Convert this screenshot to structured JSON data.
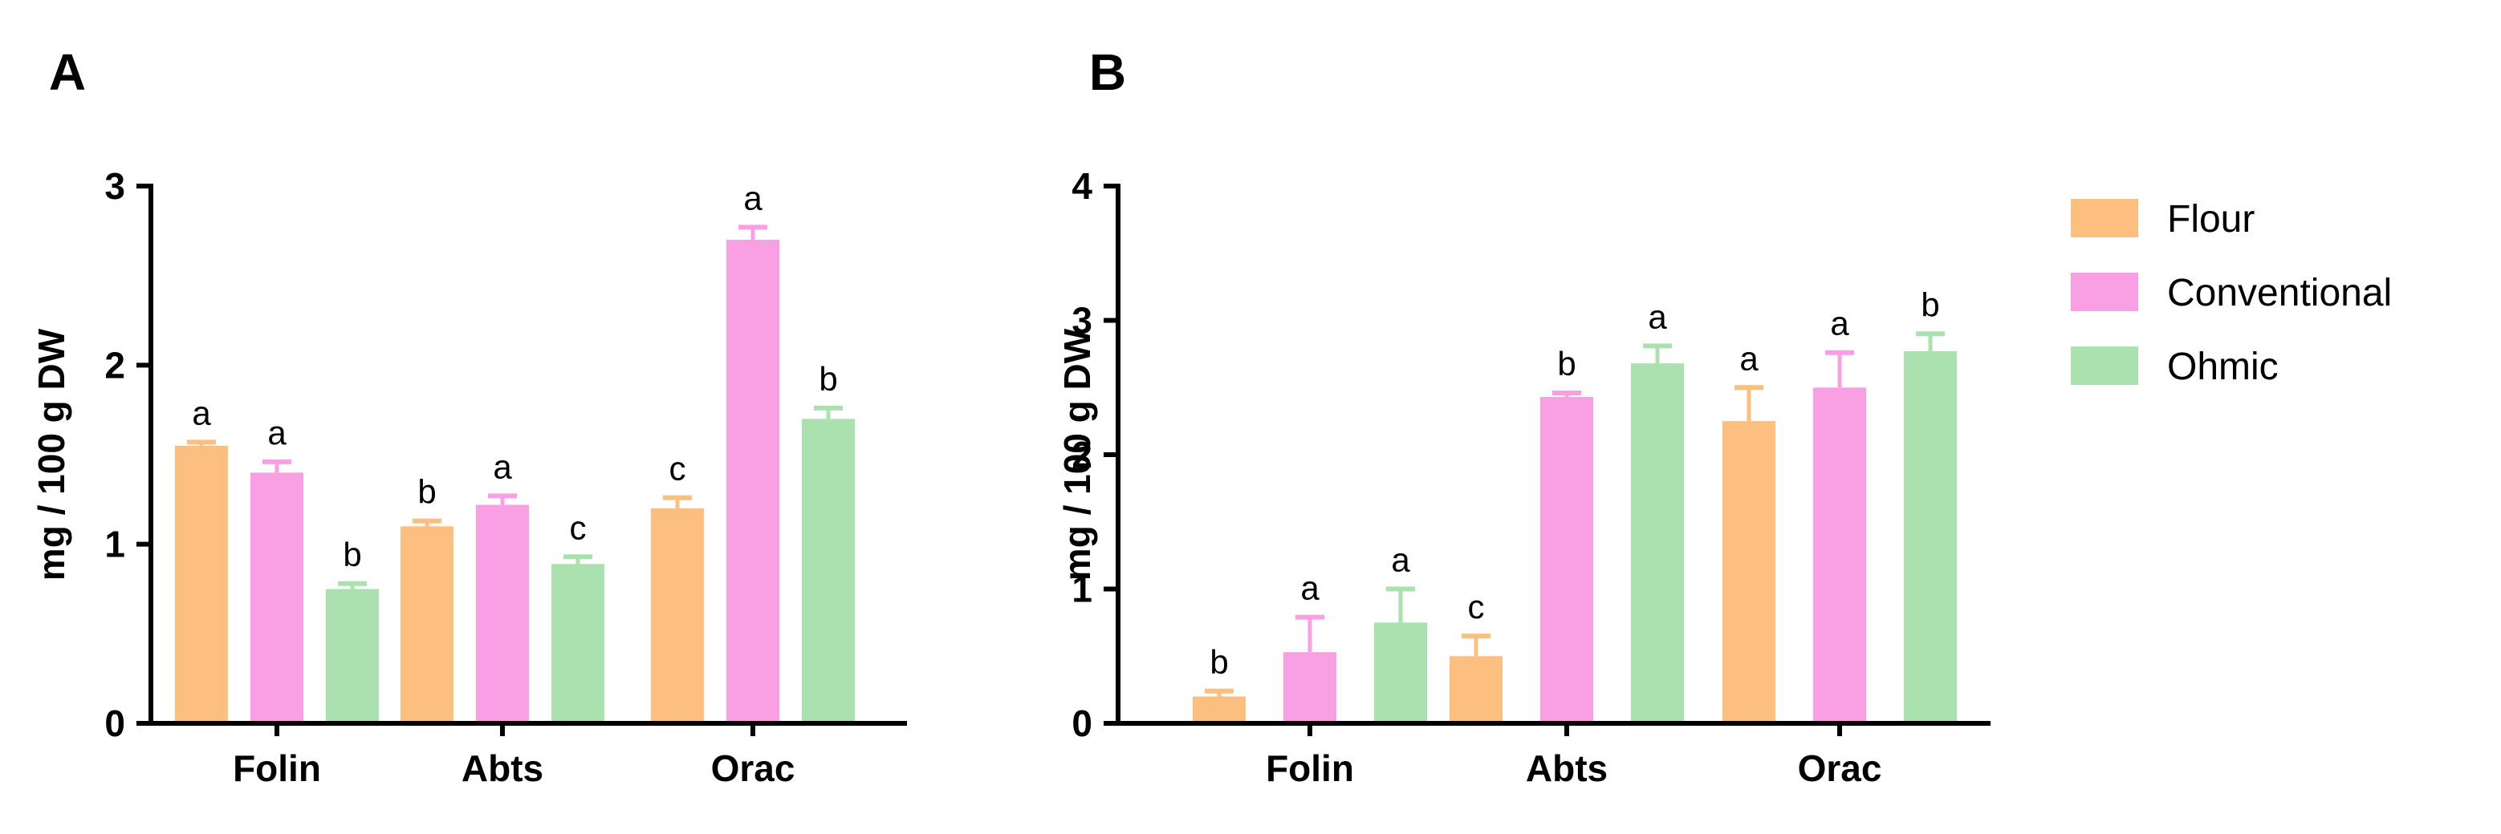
{
  "chart_data": [
    {
      "type": "bar",
      "panel": "A",
      "ylabel": "mg / 100 g DW",
      "xlabel": "",
      "ylim": [
        0,
        3
      ],
      "yticks": [
        "0",
        "1",
        "2",
        "3"
      ],
      "categories": [
        "Folin",
        "Abts",
        "Orac"
      ],
      "series": [
        {
          "name": "Flour",
          "values": [
            1.55,
            1.1,
            1.2
          ],
          "errors": [
            0.02,
            0.03,
            0.06
          ],
          "letters": [
            "a",
            "b",
            "c"
          ]
        },
        {
          "name": "Conventional",
          "values": [
            1.4,
            1.22,
            2.7
          ],
          "errors": [
            0.06,
            0.05,
            0.07
          ],
          "letters": [
            "a",
            "a",
            "a"
          ]
        },
        {
          "name": "Ohmic",
          "values": [
            0.75,
            0.89,
            1.7
          ],
          "errors": [
            0.03,
            0.04,
            0.06
          ],
          "letters": [
            "b",
            "c",
            "b"
          ]
        }
      ]
    },
    {
      "type": "bar",
      "panel": "B",
      "ylabel": "mg / 100 g DW",
      "xlabel": "",
      "ylim": [
        0,
        4
      ],
      "yticks": [
        "0",
        "1",
        "2",
        "3",
        "4"
      ],
      "categories": [
        "Folin",
        "Abts",
        "Orac"
      ],
      "series": [
        {
          "name": "Flour",
          "values": [
            0.2,
            0.5,
            2.25
          ],
          "errors": [
            0.04,
            0.15,
            0.25
          ],
          "letters": [
            "b",
            "c",
            "a"
          ]
        },
        {
          "name": "Conventional",
          "values": [
            0.53,
            2.43,
            2.5
          ],
          "errors": [
            0.26,
            0.03,
            0.26
          ],
          "letters": [
            "a",
            "b",
            "a"
          ]
        },
        {
          "name": "Ohmic",
          "values": [
            0.75,
            2.68,
            2.77
          ],
          "errors": [
            0.25,
            0.13,
            0.13
          ],
          "letters": [
            "a",
            "a",
            "b"
          ]
        }
      ]
    }
  ],
  "legend": {
    "items": [
      {
        "label": "Flour",
        "color": "#FDBF7F"
      },
      {
        "label": "Conventional",
        "color": "#F9A0E5"
      },
      {
        "label": "Ohmic",
        "color": "#ABE0AF"
      }
    ]
  },
  "colors": {
    "Flour": "#FDBF7F",
    "Conventional": "#F9A0E5",
    "Ohmic": "#ABE0AF"
  }
}
